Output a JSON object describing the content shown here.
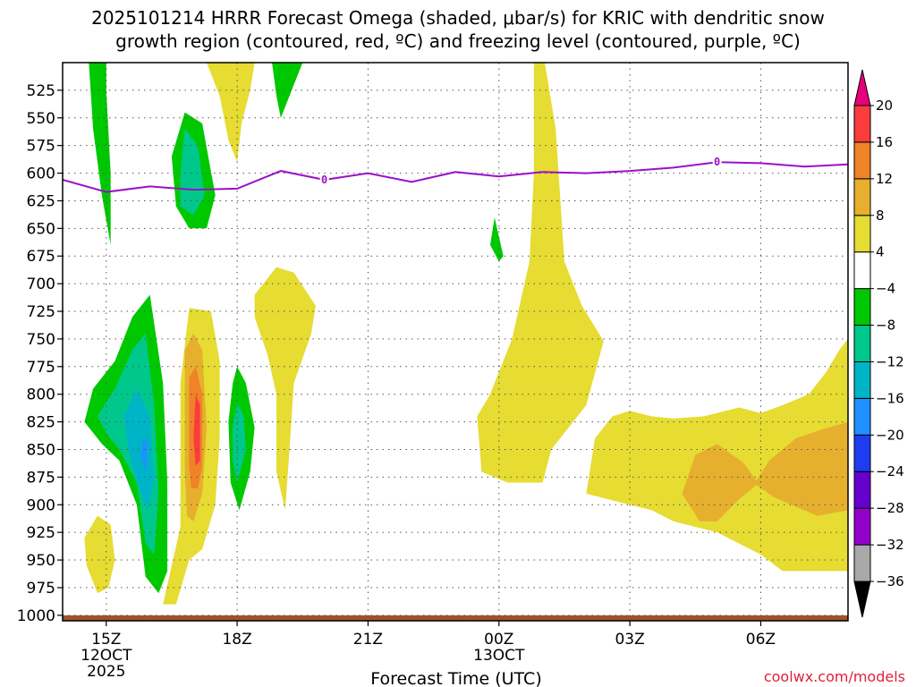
{
  "chart_data": {
    "type": "contour-timeheight",
    "title_line1": "2025101214 HRRR Forecast Omega (shaded, μbar/s) for KRIC with dendritic snow",
    "title_line2": "growth region (contoured, red, ºC) and freezing level (contoured, purple, ºC)",
    "xlabel": "Forecast Time (UTC)",
    "credit": "coolwx.com/models",
    "xlim": [
      14,
      32
    ],
    "ylim": [
      500,
      1005
    ],
    "y_ticks": [
      525,
      550,
      575,
      600,
      625,
      650,
      675,
      700,
      725,
      750,
      775,
      800,
      825,
      850,
      875,
      900,
      925,
      950,
      975,
      1000
    ],
    "x_ticks": [
      {
        "t": 15,
        "lines": [
          "15Z",
          "12OCT",
          "2025"
        ]
      },
      {
        "t": 18,
        "lines": [
          "18Z"
        ]
      },
      {
        "t": 21,
        "lines": [
          "21Z"
        ]
      },
      {
        "t": 24,
        "lines": [
          "00Z",
          "13OCT"
        ]
      },
      {
        "t": 27,
        "lines": [
          "03Z"
        ]
      },
      {
        "t": 30,
        "lines": [
          "06Z"
        ]
      }
    ],
    "colorbar": {
      "levels": [
        -36,
        -32,
        -28,
        -24,
        -20,
        -16,
        -12,
        -8,
        -4,
        4,
        8,
        12,
        16,
        20
      ],
      "colors": [
        "#000000",
        "#a9a9a9",
        "#9400cc",
        "#6600cc",
        "#1e3cf0",
        "#1e90ff",
        "#00b4c8",
        "#00c88c",
        "#00c800",
        "#ffffff",
        "#e6dc32",
        "#e6af2d",
        "#f08228",
        "#fa3c3c",
        "#e6007a"
      ]
    },
    "freezing_level": {
      "label": "0",
      "label_at_t": [
        20,
        29
      ],
      "t": [
        14,
        15,
        16,
        17,
        18,
        19,
        20,
        21,
        22,
        23,
        24,
        25,
        26,
        27,
        28,
        29,
        30,
        31,
        32
      ],
      "p": [
        606,
        617,
        612,
        615,
        614,
        598,
        606,
        600,
        608,
        599,
        603,
        599,
        600,
        598,
        595,
        590,
        591,
        594,
        592
      ]
    },
    "surface_band": {
      "p_top": 1000,
      "color": "#a0522d"
    },
    "regions": [
      {
        "value": -6,
        "color": "#00c800",
        "poly": [
          [
            14.6,
            500
          ],
          [
            15.0,
            500
          ],
          [
            15.0,
            525
          ],
          [
            15.1,
            600
          ],
          [
            15.1,
            665
          ],
          [
            14.9,
            620
          ],
          [
            14.7,
            560
          ]
        ]
      },
      {
        "value": -6,
        "color": "#00c800",
        "poly": [
          [
            16.5,
            585
          ],
          [
            16.8,
            545
          ],
          [
            17.2,
            555
          ],
          [
            17.5,
            620
          ],
          [
            17.3,
            650
          ],
          [
            16.9,
            650
          ],
          [
            16.6,
            630
          ]
        ]
      },
      {
        "value": -10,
        "color": "#00c88c",
        "poly": [
          [
            16.7,
            600
          ],
          [
            16.8,
            560
          ],
          [
            17.1,
            575
          ],
          [
            17.25,
            620
          ],
          [
            17.0,
            638
          ],
          [
            16.7,
            630
          ]
        ]
      },
      {
        "value": -6,
        "color": "#00c800",
        "poly": [
          [
            18.8,
            500
          ],
          [
            19.5,
            500
          ],
          [
            19.3,
            520
          ],
          [
            19.0,
            550
          ],
          [
            18.9,
            530
          ]
        ]
      },
      {
        "value": -6,
        "color": "#00c800",
        "poly": [
          [
            23.8,
            665
          ],
          [
            23.9,
            640
          ],
          [
            24.1,
            675
          ],
          [
            24.0,
            680
          ]
        ]
      },
      {
        "value": -6,
        "color": "#00c800",
        "poly": [
          [
            14.5,
            825
          ],
          [
            14.7,
            795
          ],
          [
            15.2,
            770
          ],
          [
            15.6,
            730
          ],
          [
            16.0,
            710
          ],
          [
            16.3,
            790
          ],
          [
            16.4,
            880
          ],
          [
            16.4,
            960
          ],
          [
            16.2,
            980
          ],
          [
            15.9,
            965
          ],
          [
            15.7,
            900
          ],
          [
            15.3,
            860
          ],
          [
            14.9,
            845
          ]
        ]
      },
      {
        "value": -10,
        "color": "#00c88c",
        "poly": [
          [
            14.8,
            820
          ],
          [
            15.2,
            795
          ],
          [
            15.6,
            760
          ],
          [
            15.9,
            745
          ],
          [
            16.1,
            810
          ],
          [
            16.2,
            890
          ],
          [
            16.1,
            945
          ],
          [
            15.9,
            935
          ],
          [
            15.7,
            880
          ],
          [
            15.3,
            850
          ],
          [
            15.0,
            835
          ]
        ]
      },
      {
        "value": -14,
        "color": "#00b4c8",
        "poly": [
          [
            15.4,
            820
          ],
          [
            15.7,
            795
          ],
          [
            16.0,
            820
          ],
          [
            16.1,
            880
          ],
          [
            15.95,
            905
          ],
          [
            15.7,
            880
          ],
          [
            15.5,
            850
          ]
        ]
      },
      {
        "value": -18,
        "color": "#1e90ff",
        "poly": [
          [
            15.85,
            840
          ],
          [
            15.95,
            845
          ],
          [
            15.9,
            870
          ],
          [
            15.8,
            855
          ]
        ]
      },
      {
        "value": -6,
        "color": "#00c800",
        "poly": [
          [
            17.8,
            825
          ],
          [
            17.9,
            790
          ],
          [
            18.0,
            775
          ],
          [
            18.2,
            790
          ],
          [
            18.4,
            830
          ],
          [
            18.3,
            870
          ],
          [
            18.05,
            905
          ],
          [
            17.85,
            880
          ]
        ]
      },
      {
        "value": -10,
        "color": "#00c88c",
        "poly": [
          [
            17.9,
            830
          ],
          [
            18.0,
            808
          ],
          [
            18.15,
            820
          ],
          [
            18.2,
            850
          ],
          [
            18.0,
            880
          ],
          [
            17.9,
            860
          ]
        ]
      },
      {
        "value": 6,
        "color": "#e6dc32",
        "poly": [
          [
            16.3,
            990
          ],
          [
            16.7,
            920
          ],
          [
            16.7,
            790
          ],
          [
            16.9,
            722
          ],
          [
            17.4,
            725
          ],
          [
            17.6,
            770
          ],
          [
            17.6,
            840
          ],
          [
            17.5,
            900
          ],
          [
            17.2,
            940
          ],
          [
            16.9,
            950
          ],
          [
            16.6,
            990
          ]
        ]
      },
      {
        "value": 10,
        "color": "#e6af2d",
        "poly": [
          [
            16.8,
            870
          ],
          [
            16.8,
            760
          ],
          [
            17.0,
            745
          ],
          [
            17.2,
            760
          ],
          [
            17.3,
            830
          ],
          [
            17.2,
            890
          ],
          [
            17.0,
            915
          ],
          [
            16.85,
            910
          ]
        ]
      },
      {
        "value": 14,
        "color": "#f08228",
        "poly": [
          [
            16.9,
            865
          ],
          [
            16.9,
            785
          ],
          [
            17.05,
            775
          ],
          [
            17.2,
            800
          ],
          [
            17.2,
            865
          ],
          [
            17.1,
            885
          ],
          [
            16.95,
            885
          ]
        ]
      },
      {
        "value": 18,
        "color": "#fa3c3c",
        "poly": [
          [
            17.0,
            840
          ],
          [
            17.05,
            800
          ],
          [
            17.15,
            810
          ],
          [
            17.15,
            860
          ],
          [
            17.05,
            865
          ]
        ]
      },
      {
        "value": 6,
        "color": "#e6dc32",
        "poly": [
          [
            14.5,
            930
          ],
          [
            14.8,
            910
          ],
          [
            15.1,
            918
          ],
          [
            15.2,
            950
          ],
          [
            15.05,
            975
          ],
          [
            14.8,
            980
          ],
          [
            14.55,
            955
          ]
        ]
      },
      {
        "value": 6,
        "color": "#e6dc32",
        "poly": [
          [
            17.3,
            500
          ],
          [
            18.4,
            500
          ],
          [
            18.3,
            525
          ],
          [
            18.1,
            555
          ],
          [
            18.0,
            590
          ],
          [
            17.8,
            570
          ],
          [
            17.6,
            530
          ]
        ]
      },
      {
        "value": 6,
        "color": "#e6dc32",
        "poly": [
          [
            18.4,
            710
          ],
          [
            18.9,
            685
          ],
          [
            19.3,
            690
          ],
          [
            19.8,
            720
          ],
          [
            19.7,
            745
          ],
          [
            19.3,
            790
          ],
          [
            19.2,
            850
          ],
          [
            19.1,
            905
          ],
          [
            18.9,
            870
          ],
          [
            18.9,
            800
          ],
          [
            18.7,
            765
          ],
          [
            18.4,
            730
          ]
        ]
      },
      {
        "value": 6,
        "color": "#e6dc32",
        "poly": [
          [
            24.8,
            500
          ],
          [
            25.05,
            500
          ],
          [
            25.3,
            560
          ],
          [
            25.5,
            680
          ],
          [
            25.9,
            720
          ],
          [
            26.4,
            752
          ],
          [
            26.0,
            810
          ],
          [
            25.2,
            850
          ],
          [
            25.0,
            880
          ],
          [
            24.2,
            880
          ],
          [
            23.6,
            870
          ],
          [
            23.5,
            820
          ],
          [
            23.8,
            800
          ],
          [
            24.3,
            750
          ],
          [
            24.7,
            680
          ],
          [
            24.8,
            600
          ],
          [
            24.8,
            560
          ]
        ]
      },
      {
        "value": 6,
        "color": "#e6dc32",
        "poly": [
          [
            26.0,
            890
          ],
          [
            26.2,
            840
          ],
          [
            26.6,
            820
          ],
          [
            27.0,
            815
          ],
          [
            27.5,
            820
          ],
          [
            28.0,
            822
          ],
          [
            28.7,
            820
          ],
          [
            29.5,
            812
          ],
          [
            30.0,
            817
          ],
          [
            30.5,
            810
          ],
          [
            31.1,
            800
          ],
          [
            31.5,
            780
          ],
          [
            31.8,
            760
          ],
          [
            32.0,
            750
          ],
          [
            32.0,
            960
          ],
          [
            30.5,
            960
          ],
          [
            30.0,
            945
          ],
          [
            29.5,
            935
          ],
          [
            29.0,
            925
          ],
          [
            28.5,
            920
          ],
          [
            28.0,
            915
          ],
          [
            27.5,
            905
          ],
          [
            27.0,
            900
          ]
        ]
      },
      {
        "value": 10,
        "color": "#e6af2d",
        "poly": [
          [
            28.2,
            890
          ],
          [
            28.5,
            855
          ],
          [
            29.0,
            845
          ],
          [
            29.6,
            862
          ],
          [
            29.9,
            878
          ],
          [
            30.2,
            860
          ],
          [
            30.8,
            840
          ],
          [
            31.4,
            832
          ],
          [
            32.0,
            825
          ],
          [
            32.0,
            905
          ],
          [
            31.3,
            910
          ],
          [
            30.7,
            900
          ],
          [
            30.3,
            893
          ],
          [
            29.9,
            882
          ],
          [
            29.5,
            895
          ],
          [
            29.0,
            915
          ],
          [
            28.6,
            915
          ]
        ]
      }
    ]
  }
}
